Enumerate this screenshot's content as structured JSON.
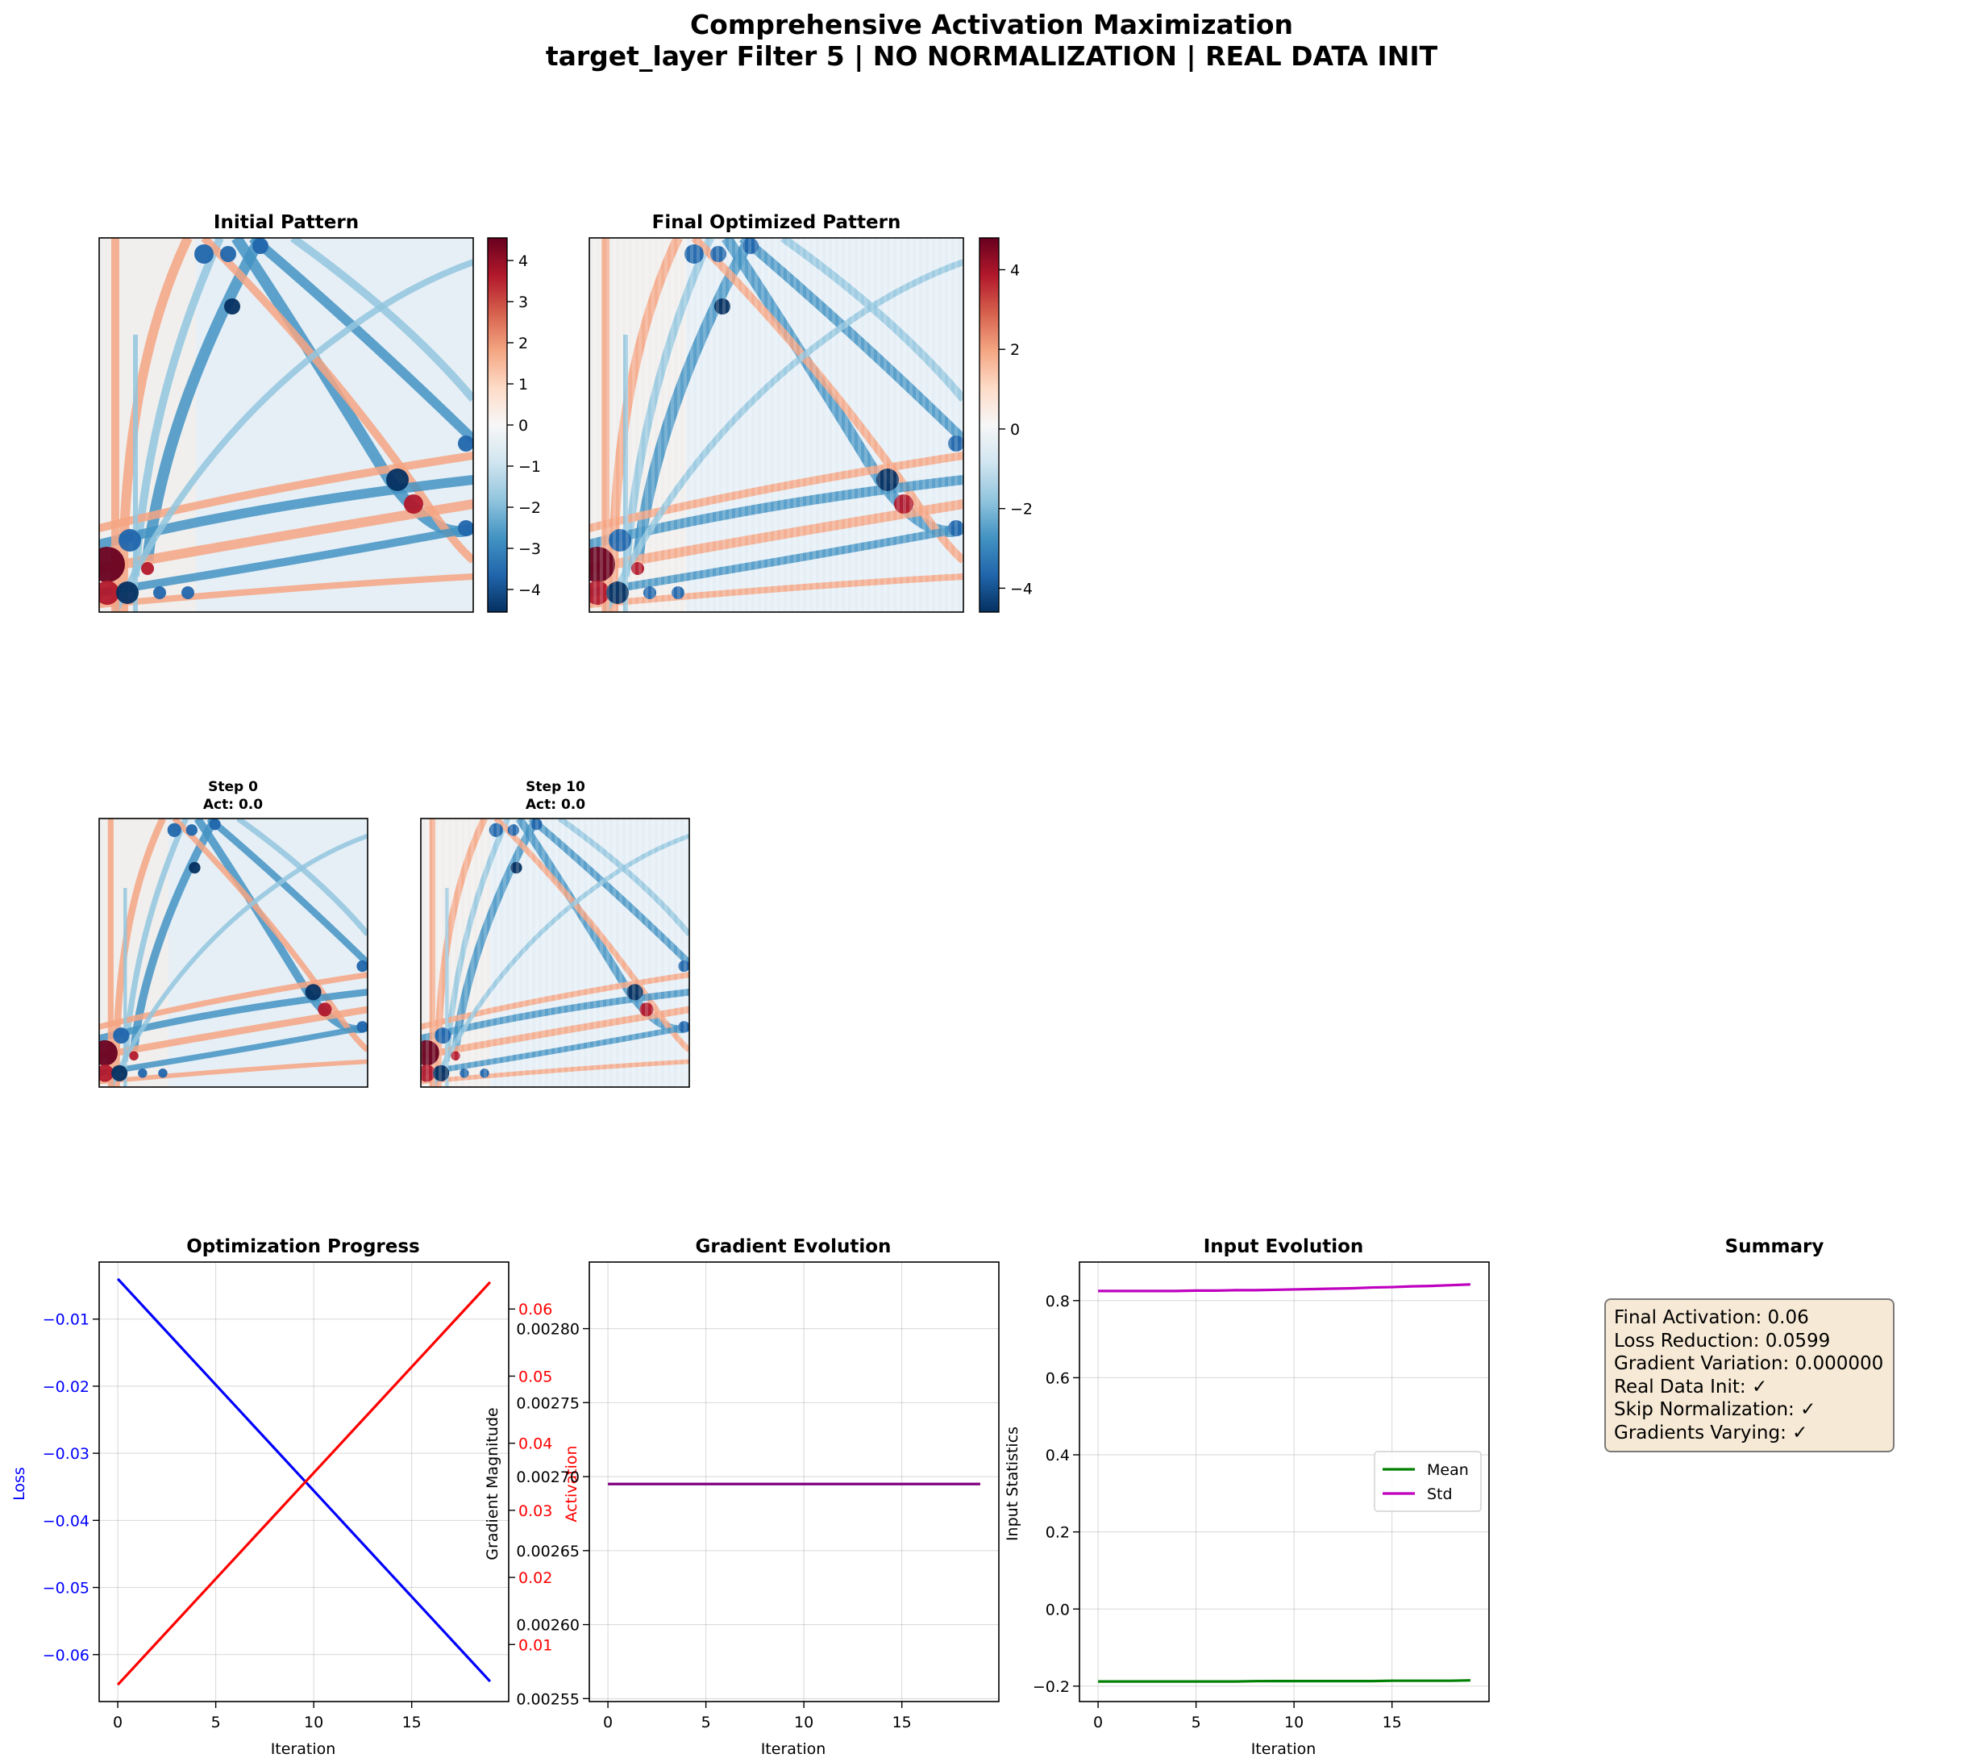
{
  "figure": {
    "title_line1": "Comprehensive Activation Maximization",
    "title_line2": "target_layer Filter 5 | NO NORMALIZATION | REAL DATA INIT"
  },
  "colors": {
    "rdbu": [
      "#053061",
      "#2166ac",
      "#4393c3",
      "#92c5de",
      "#d1e5f0",
      "#f7f7f7",
      "#fddbc7",
      "#f4a582",
      "#d6604d",
      "#b2182b",
      "#67001f"
    ],
    "loss": "#0000ff",
    "activation": "#ff0000",
    "gradient": "#800080",
    "mean": "#008000",
    "std": "#bf00bf",
    "summary_bg": "#f6e9d5"
  },
  "panels": {
    "initial": {
      "title": "Initial Pattern",
      "colorbar_ticks": [
        "4",
        "3",
        "2",
        "1",
        "0",
        "−1",
        "−2",
        "−3",
        "−4"
      ]
    },
    "final": {
      "title": "Final Optimized Pattern",
      "colorbar_ticks": [
        "4",
        "2",
        "0",
        "−2",
        "−4"
      ]
    },
    "step0": {
      "title_line1": "Step 0",
      "title_line2": "Act: 0.0"
    },
    "step10": {
      "title_line1": "Step 10",
      "title_line2": "Act: 0.0"
    }
  },
  "chart_data": [
    {
      "type": "line",
      "title": "Optimization Progress",
      "xlabel": "Iteration",
      "ylabel": "Loss",
      "ylabel_right": "Activation",
      "x": [
        0,
        1,
        2,
        3,
        4,
        5,
        6,
        7,
        8,
        9,
        10,
        11,
        12,
        13,
        14,
        15,
        16,
        17,
        18,
        19
      ],
      "xticks": [
        "0",
        "5",
        "10",
        "15"
      ],
      "yticks_left": [
        "−0.01",
        "−0.02",
        "−0.03",
        "−0.04",
        "−0.05",
        "−0.06"
      ],
      "yticks_right": [
        "0.06",
        "0.05",
        "0.04",
        "0.03",
        "0.02",
        "0.01"
      ],
      "ylim_left": [
        -0.067,
        -0.0015
      ],
      "ylim_right": [
        0.0015,
        0.067
      ],
      "series": [
        {
          "name": "Loss",
          "axis": "left",
          "y_start": -0.004,
          "y_end": -0.064
        },
        {
          "name": "Activation",
          "axis": "right",
          "y_start": 0.004,
          "y_end": 0.064
        }
      ],
      "grid": true
    },
    {
      "type": "line",
      "title": "Gradient Evolution",
      "xlabel": "Iteration",
      "ylabel": "Gradient Magnitude",
      "x": [
        0,
        1,
        2,
        3,
        4,
        5,
        6,
        7,
        8,
        9,
        10,
        11,
        12,
        13,
        14,
        15,
        16,
        17,
        18,
        19
      ],
      "xticks": [
        "0",
        "5",
        "10",
        "15"
      ],
      "yticks": [
        "0.00280",
        "0.00275",
        "0.00270",
        "0.00265",
        "0.00260",
        "0.00255"
      ],
      "ylim": [
        0.002548,
        0.002845
      ],
      "series": [
        {
          "name": "",
          "y_const": 0.002695
        }
      ],
      "grid": true
    },
    {
      "type": "line",
      "title": "Input Evolution",
      "xlabel": "Iteration",
      "ylabel": "Input Statistics",
      "x": [
        0,
        1,
        2,
        3,
        4,
        5,
        6,
        7,
        8,
        9,
        10,
        11,
        12,
        13,
        14,
        15,
        16,
        17,
        18,
        19
      ],
      "xticks": [
        "0",
        "5",
        "10",
        "15"
      ],
      "yticks": [
        "0.8",
        "0.6",
        "0.4",
        "0.2",
        "0.0",
        "−0.2"
      ],
      "ylim": [
        -0.24,
        0.9
      ],
      "series": [
        {
          "name": "Mean",
          "values": [
            -0.188,
            -0.188,
            -0.188,
            -0.188,
            -0.188,
            -0.188,
            -0.188,
            -0.188,
            -0.187,
            -0.187,
            -0.187,
            -0.187,
            -0.187,
            -0.187,
            -0.187,
            -0.186,
            -0.186,
            -0.186,
            -0.186,
            -0.185
          ]
        },
        {
          "name": "Std",
          "values": [
            0.825,
            0.825,
            0.825,
            0.825,
            0.825,
            0.826,
            0.826,
            0.827,
            0.827,
            0.828,
            0.829,
            0.83,
            0.831,
            0.832,
            0.834,
            0.835,
            0.837,
            0.838,
            0.84,
            0.842
          ]
        }
      ],
      "legend": "center-right",
      "grid": true
    }
  ],
  "summary": {
    "title": "Summary",
    "lines": [
      "Final Activation: 0.06",
      "Loss Reduction: 0.0599",
      "Gradient Variation: 0.000000",
      "Real Data Init: ✓",
      "Skip Normalization: ✓",
      "Gradients Varying: ✓"
    ]
  }
}
